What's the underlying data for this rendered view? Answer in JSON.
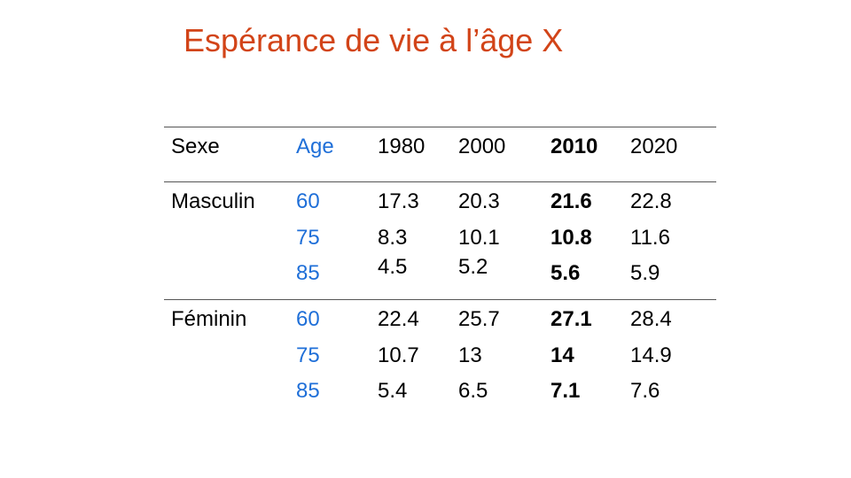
{
  "title": "Espérance de vie à l’âge X",
  "colors": {
    "title": "#d24418",
    "age": "#1f6fd8",
    "rule": "#555555"
  },
  "table": {
    "headers": [
      "Sexe",
      "Age",
      "1980",
      "2000",
      "2010",
      "2020"
    ],
    "highlight_column": "2010",
    "groups": [
      {
        "sexe": "Masculin",
        "rows": [
          {
            "age": "60",
            "values": [
              "17.3",
              "20.3",
              "21.6",
              "22.8"
            ]
          },
          {
            "age": "75",
            "values": [
              "8.3",
              "10.1",
              "10.8",
              "11.6"
            ]
          },
          {
            "age": "85",
            "values": [
              "4.5",
              "5.2",
              "5.6",
              "5.9"
            ]
          }
        ]
      },
      {
        "sexe": "Féminin",
        "rows": [
          {
            "age": "60",
            "values": [
              "22.4",
              "25.7",
              "27.1",
              "28.4"
            ]
          },
          {
            "age": "75",
            "values": [
              "10.7",
              "13",
              "14",
              "14.9"
            ]
          },
          {
            "age": "85",
            "values": [
              "5.4",
              "6.5",
              "7.1",
              "7.6"
            ]
          }
        ]
      }
    ]
  }
}
